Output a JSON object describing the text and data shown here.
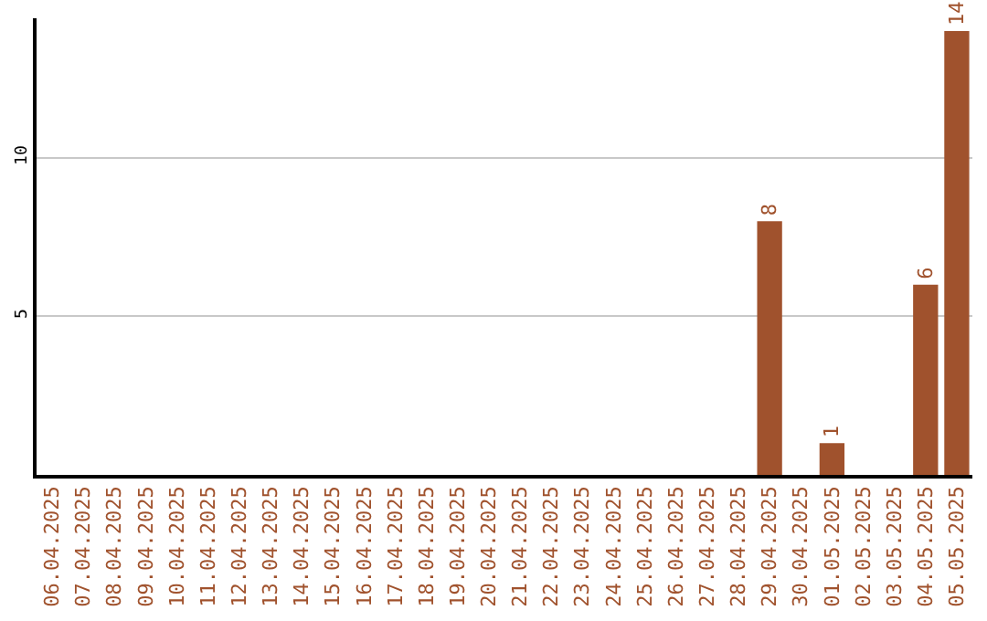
{
  "chart_data": {
    "type": "bar",
    "categories": [
      "06.04.2025",
      "07.04.2025",
      "08.04.2025",
      "09.04.2025",
      "10.04.2025",
      "11.04.2025",
      "12.04.2025",
      "13.04.2025",
      "14.04.2025",
      "15.04.2025",
      "16.04.2025",
      "17.04.2025",
      "18.04.2025",
      "19.04.2025",
      "20.04.2025",
      "21.04.2025",
      "22.04.2025",
      "23.04.2025",
      "24.04.2025",
      "25.04.2025",
      "26.04.2025",
      "27.04.2025",
      "28.04.2025",
      "29.04.2025",
      "30.04.2025",
      "01.05.2025",
      "02.05.2025",
      "03.05.2025",
      "04.05.2025",
      "05.05.2025"
    ],
    "values": [
      0,
      0,
      0,
      0,
      0,
      0,
      0,
      0,
      0,
      0,
      0,
      0,
      0,
      0,
      0,
      0,
      0,
      0,
      0,
      0,
      0,
      0,
      0,
      8,
      0,
      1,
      0,
      0,
      6,
      14
    ],
    "value_labels": [
      null,
      null,
      null,
      null,
      null,
      null,
      null,
      null,
      null,
      null,
      null,
      null,
      null,
      null,
      null,
      null,
      null,
      null,
      null,
      null,
      null,
      null,
      null,
      "8",
      null,
      "1",
      null,
      null,
      "6",
      "14"
    ],
    "color": "#a0522d",
    "ylim": [
      0,
      14.4
    ],
    "yticks": [
      5,
      10
    ],
    "grid": "y",
    "legend": false
  }
}
